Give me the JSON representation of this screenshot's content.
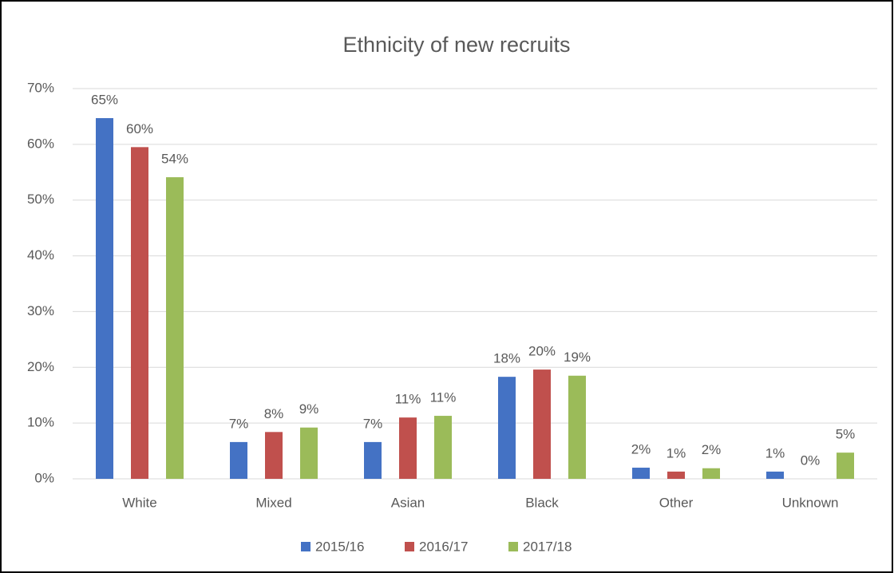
{
  "chart_data": {
    "type": "bar",
    "title": "Ethnicity of new recruits",
    "categories": [
      "White",
      "Mixed",
      "Asian",
      "Black",
      "Other",
      "Unknown"
    ],
    "series": [
      {
        "name": "2015/16",
        "color": "#4472c4",
        "values": [
          64.7,
          6.6,
          6.6,
          18.3,
          2.0,
          1.3
        ],
        "value_labels": [
          "65%",
          "7%",
          "7%",
          "18%",
          "2%",
          "1%"
        ]
      },
      {
        "name": "2016/17",
        "color": "#c0504d",
        "values": [
          59.5,
          8.4,
          11.0,
          19.6,
          1.3,
          0
        ],
        "value_labels": [
          "60%",
          "8%",
          "11%",
          "20%",
          "1%",
          "0%"
        ]
      },
      {
        "name": "2017/18",
        "color": "#9bbb59",
        "values": [
          54.1,
          9.2,
          11.3,
          18.5,
          1.9,
          4.7
        ],
        "value_labels": [
          "54%",
          "9%",
          "11%",
          "19%",
          "2%",
          "5%"
        ]
      }
    ],
    "ylim": [
      0,
      70
    ],
    "yticks": [
      {
        "value": 0,
        "label": "0%"
      },
      {
        "value": 10,
        "label": "10%"
      },
      {
        "value": 20,
        "label": "20%"
      },
      {
        "value": 30,
        "label": "30%"
      },
      {
        "value": 40,
        "label": "40%"
      },
      {
        "value": 50,
        "label": "50%"
      },
      {
        "value": 60,
        "label": "60%"
      },
      {
        "value": 70,
        "label": "70%"
      }
    ],
    "grid": true,
    "legend": "bottom"
  }
}
